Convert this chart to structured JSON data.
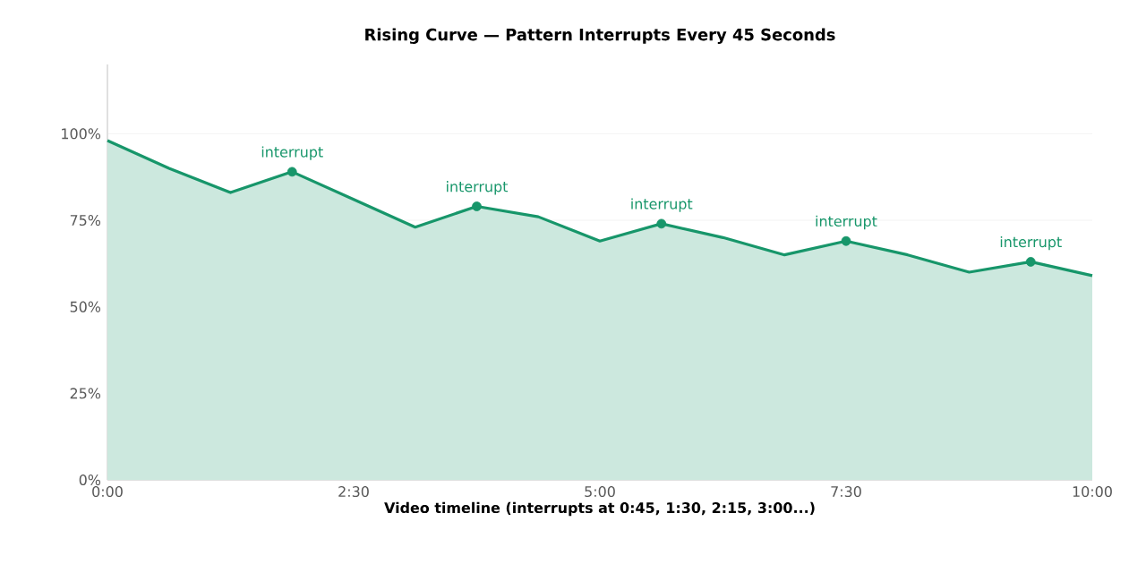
{
  "chart_data": {
    "type": "area",
    "title": "Rising Curve — Pattern Interrupts Every 45 Seconds",
    "xlabel": "Video timeline (interrupts at 0:45, 1:30, 2:15, 3:00...)",
    "x": [
      0,
      37.5,
      75,
      112.5,
      150,
      187.5,
      225,
      262.5,
      300,
      337.5,
      375,
      412.5,
      450,
      487.5,
      525,
      562.5,
      600
    ],
    "series": [
      {
        "color": "#17966a",
        "values": [
          98,
          90,
          83,
          89,
          81,
          73,
          79,
          76,
          69,
          74,
          70,
          65,
          69,
          65,
          60,
          63,
          59
        ]
      }
    ],
    "xlim": [
      0,
      600
    ],
    "xticks": [
      {
        "value": 0,
        "label": "0:00"
      },
      {
        "value": 150,
        "label": "2:30"
      },
      {
        "value": 300,
        "label": "5:00"
      },
      {
        "value": 450,
        "label": "7:30"
      },
      {
        "value": 600,
        "label": "10:00"
      }
    ],
    "ylim": [
      0,
      120
    ],
    "yticks": [
      {
        "value": 0,
        "label": "0%"
      },
      {
        "value": 25,
        "label": "25%"
      },
      {
        "value": 50,
        "label": "50%"
      },
      {
        "value": 75,
        "label": "75%"
      },
      {
        "value": 100,
        "label": "100%"
      }
    ],
    "grid": "y",
    "annotations": [
      {
        "text": "interrupt",
        "x": 112.5,
        "y": 89
      },
      {
        "text": "interrupt",
        "x": 225,
        "y": 79
      },
      {
        "text": "interrupt",
        "x": 337.5,
        "y": 74
      },
      {
        "text": "interrupt",
        "x": 450,
        "y": 69
      },
      {
        "text": "interrupt",
        "x": 562.5,
        "y": 63
      }
    ]
  }
}
